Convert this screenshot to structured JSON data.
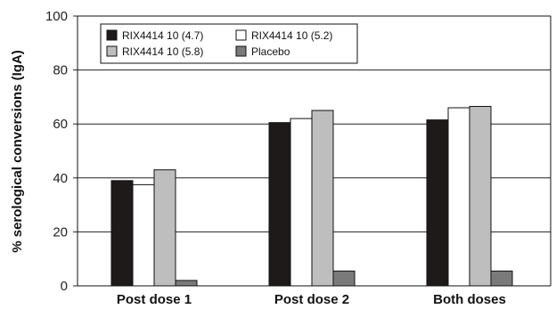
{
  "chart_data": {
    "type": "bar",
    "title": "",
    "xlabel": "",
    "ylabel": "% serological conversions (IgA)",
    "ylim": [
      0,
      100
    ],
    "yticks": [
      0,
      20,
      40,
      60,
      80,
      100
    ],
    "grid": "horizontal",
    "legend_position": "top-left",
    "categories": [
      "Post dose 1",
      "Post dose 2",
      "Both doses"
    ],
    "series": [
      {
        "name": "RIX4414 10 (4.7)",
        "color": "#1e1a1a",
        "values": [
          39,
          60.5,
          61.5
        ]
      },
      {
        "name": "RIX4414 10 (5.2)",
        "color": "#ffffff",
        "values": [
          37.5,
          62,
          66
        ]
      },
      {
        "name": "RIX4414 10 (5.8)",
        "color": "#bebebe",
        "values": [
          43,
          65,
          66.5
        ]
      },
      {
        "name": "Placebo",
        "color": "#7a7a7a",
        "values": [
          2,
          5.5,
          5.5
        ]
      }
    ]
  }
}
